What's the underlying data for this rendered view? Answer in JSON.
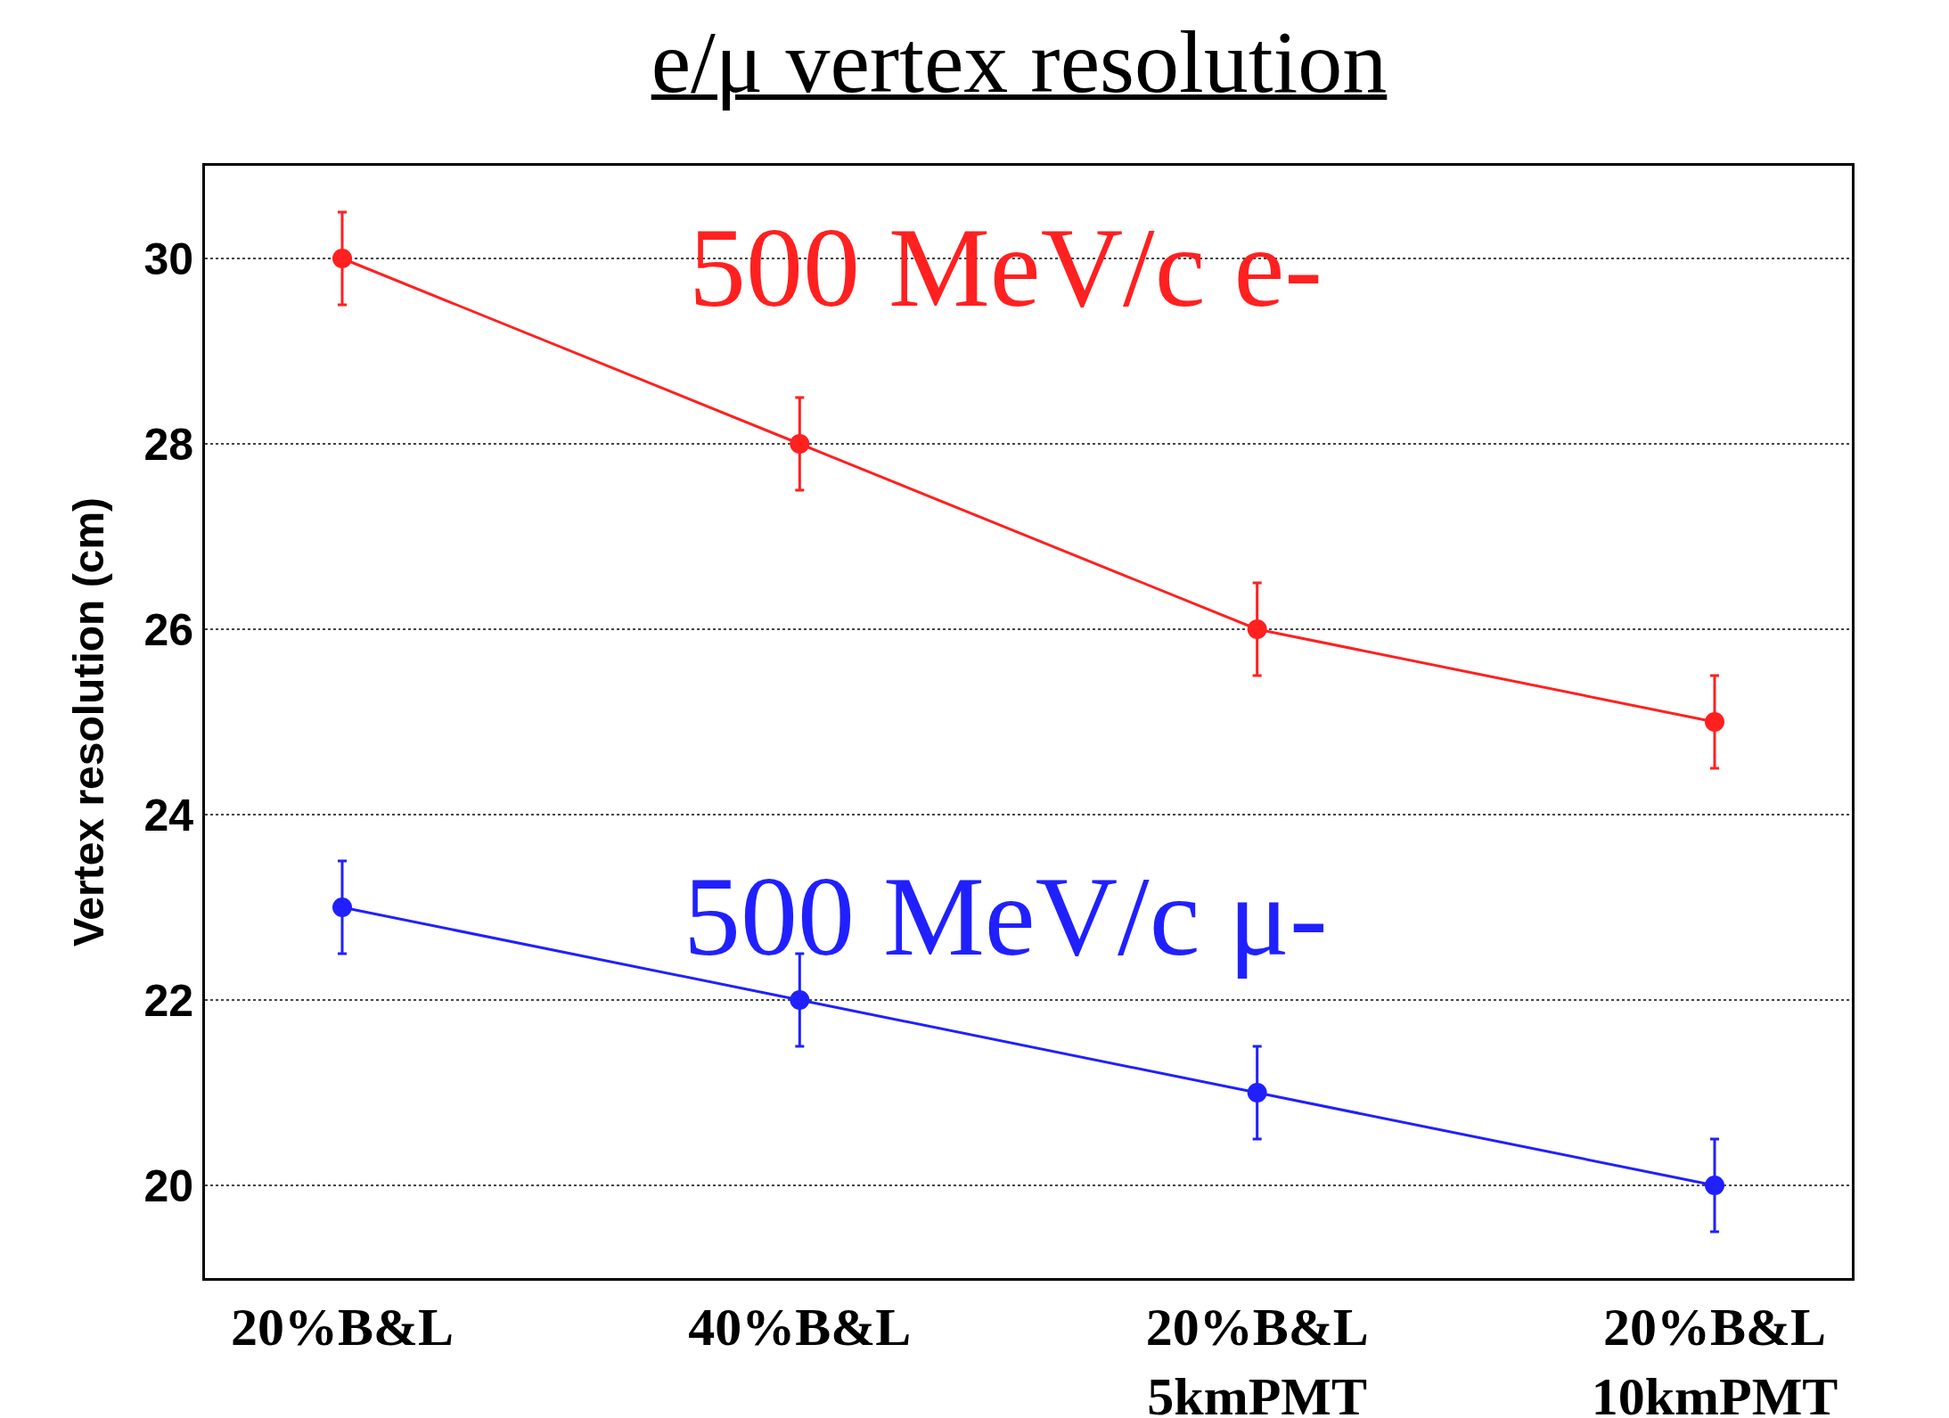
{
  "chart_data": {
    "type": "line",
    "title": "e/μ vertex resolution",
    "ylabel": "Vertex resolution (cm)",
    "categories": [
      "20%B&L",
      "40%B&L",
      "20%B&L\n5kmPMT",
      "20%B&L\n10kmPMT"
    ],
    "series": [
      {
        "name": "500 MeV/c e-",
        "color": "#ff2020",
        "values": [
          30,
          28,
          26,
          25
        ],
        "errors": [
          0.5,
          0.5,
          0.5,
          0.5
        ]
      },
      {
        "name": "500 MeV/c μ-",
        "color": "#2020ff",
        "values": [
          23,
          22,
          21,
          20
        ],
        "errors": [
          0.5,
          0.5,
          0.5,
          0.5
        ]
      }
    ],
    "ylim": [
      19,
      31
    ],
    "yticks": [
      20,
      22,
      24,
      26,
      28,
      30
    ],
    "grid": "y",
    "line_style": "solid",
    "marker": "circle",
    "legend": false
  }
}
